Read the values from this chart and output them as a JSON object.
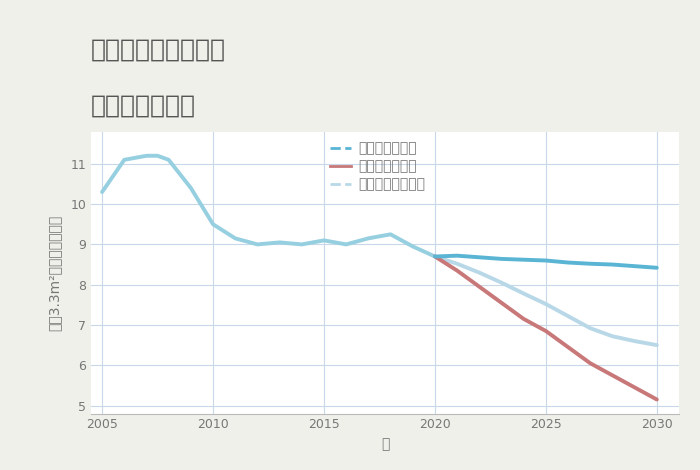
{
  "title_line1": "岐阜県関市下之保の",
  "title_line2": "土地の価格推移",
  "xlabel": "年",
  "ylabel": "坪（3.3m²）単価（万円）",
  "background_color": "#f0f0eb",
  "plot_background_color": "#ffffff",
  "grid_color": "#c8d8e8",
  "ylim": [
    4.8,
    11.8
  ],
  "xlim": [
    2004.5,
    2031
  ],
  "yticks": [
    5,
    6,
    7,
    8,
    9,
    10,
    11
  ],
  "xticks": [
    2005,
    2010,
    2015,
    2020,
    2025,
    2030
  ],
  "historical_years": [
    2005,
    2006,
    2007,
    2007.5,
    2008,
    2009,
    2010,
    2011,
    2012,
    2013,
    2014,
    2015,
    2016,
    2017,
    2018,
    2019,
    2020
  ],
  "historical_values": [
    10.3,
    11.1,
    11.2,
    11.2,
    11.1,
    10.4,
    9.5,
    9.15,
    9.0,
    9.05,
    9.0,
    9.1,
    9.0,
    9.15,
    9.25,
    8.95,
    8.7
  ],
  "good_years": [
    2020,
    2021,
    2022,
    2023,
    2024,
    2025,
    2026,
    2027,
    2028,
    2029,
    2030
  ],
  "good_values": [
    8.7,
    8.72,
    8.68,
    8.64,
    8.62,
    8.6,
    8.55,
    8.52,
    8.5,
    8.46,
    8.42
  ],
  "bad_years": [
    2020,
    2021,
    2022,
    2023,
    2024,
    2025,
    2026,
    2027,
    2028,
    2029,
    2030
  ],
  "bad_values": [
    8.7,
    8.35,
    7.95,
    7.55,
    7.15,
    6.85,
    6.45,
    6.05,
    5.75,
    5.45,
    5.15
  ],
  "normal_years": [
    2020,
    2021,
    2022,
    2023,
    2024,
    2025,
    2026,
    2027,
    2028,
    2029,
    2030
  ],
  "normal_values": [
    8.7,
    8.52,
    8.3,
    8.05,
    7.78,
    7.52,
    7.22,
    6.92,
    6.72,
    6.6,
    6.5
  ],
  "hist_color": "#96cfe0",
  "good_color": "#5ab4d4",
  "bad_color": "#c87878",
  "normal_color": "#b8d8e8",
  "legend_labels": [
    "グッドシナリオ",
    "バッドシナリオ",
    "ノーマルシナリオ"
  ],
  "legend_colors": [
    "#5ab4d4",
    "#c87878",
    "#b8d8e8"
  ],
  "legend_dash": [
    true,
    true,
    true
  ],
  "title_fontsize": 18,
  "label_fontsize": 10,
  "tick_fontsize": 9,
  "legend_fontsize": 10,
  "title_color": "#555555",
  "axis_color": "#777777"
}
